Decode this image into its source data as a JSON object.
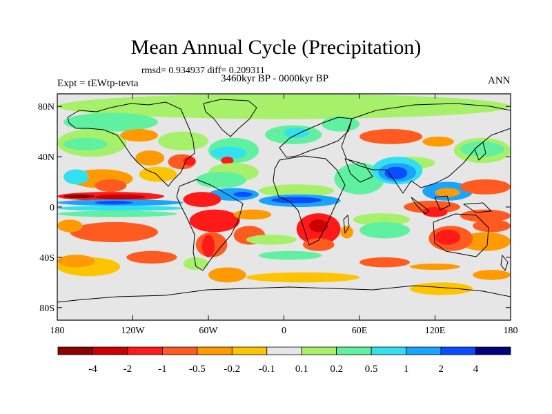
{
  "header": {
    "title": "Mean Annual Cycle (Precipitation)",
    "stats": "rmsd= 0.934937 diff= 0.209311",
    "subtitle": "3460kyr BP - 0000kyr BP",
    "experiment": "Expt = tEWtp-tevta",
    "season": "ANN"
  },
  "axes": {
    "lat_ticks": [
      {
        "lat": 80,
        "label": "80N"
      },
      {
        "lat": 40,
        "label": "40N"
      },
      {
        "lat": 0,
        "label": "0"
      },
      {
        "lat": -40,
        "label": "40S"
      },
      {
        "lat": -80,
        "label": "80S"
      }
    ],
    "lon_ticks": [
      {
        "lon": -180,
        "label": "180"
      },
      {
        "lon": -120,
        "label": "120W"
      },
      {
        "lon": -60,
        "label": "60W"
      },
      {
        "lon": 0,
        "label": "0"
      },
      {
        "lon": 60,
        "label": "60E"
      },
      {
        "lon": 120,
        "label": "120E"
      },
      {
        "lon": 180,
        "label": "180"
      }
    ]
  },
  "colorbar": {
    "colors": [
      "#8b0000",
      "#cc0000",
      "#ff1a1a",
      "#ff5a1f",
      "#ff9a00",
      "#ffc400",
      "#e6e6e6",
      "#a6f06a",
      "#5ff0a0",
      "#33e0f0",
      "#19a5ff",
      "#0a4cff",
      "#00007a"
    ],
    "labels": [
      "-4",
      "-2",
      "-1",
      "-0.5",
      "-0.2",
      "-0.1",
      "0.1",
      "0.2",
      "0.5",
      "1",
      "2",
      "4"
    ]
  },
  "field": {
    "background": "#e6e6e6",
    "zones": [
      {
        "color": "#a6f06a",
        "lat": [
          70,
          90
        ],
        "lon": [
          -180,
          180
        ]
      },
      {
        "color": "#5ff0a0",
        "lat": [
          60,
          75
        ],
        "lon": [
          -175,
          -100
        ]
      },
      {
        "color": "#a6f06a",
        "lat": [
          40,
          62
        ],
        "lon": [
          -180,
          -125
        ]
      },
      {
        "color": "#5ff0a0",
        "lat": [
          45,
          55
        ],
        "lon": [
          -175,
          -140
        ]
      },
      {
        "color": "#ff9a00",
        "lat": [
          52,
          62
        ],
        "lon": [
          -130,
          -100
        ]
      },
      {
        "color": "#a6f06a",
        "lat": [
          45,
          60
        ],
        "lon": [
          -100,
          -60
        ]
      },
      {
        "color": "#ff9a00",
        "lat": [
          33,
          45
        ],
        "lon": [
          -118,
          -95
        ]
      },
      {
        "color": "#ff5a1f",
        "lat": [
          30,
          42
        ],
        "lon": [
          -92,
          -70
        ]
      },
      {
        "color": "#ff1a1a",
        "lat": [
          33,
          40
        ],
        "lon": [
          -80,
          -70
        ]
      },
      {
        "color": "#5ff0a0",
        "lat": [
          35,
          55
        ],
        "lon": [
          -60,
          -20
        ]
      },
      {
        "color": "#33e0f0",
        "lat": [
          38,
          48
        ],
        "lon": [
          -58,
          -30
        ]
      },
      {
        "color": "#ff1a1a",
        "lat": [
          34,
          40
        ],
        "lon": [
          -50,
          -40
        ]
      },
      {
        "color": "#ff9a00",
        "lat": [
          15,
          30
        ],
        "lon": [
          -170,
          -120
        ]
      },
      {
        "color": "#ff5a1f",
        "lat": [
          12,
          22
        ],
        "lon": [
          -150,
          -125
        ]
      },
      {
        "color": "#ffc400",
        "lat": [
          20,
          32
        ],
        "lon": [
          -115,
          -85
        ]
      },
      {
        "color": "#5ff0a0",
        "lat": [
          50,
          65
        ],
        "lon": [
          -15,
          30
        ]
      },
      {
        "color": "#33e0f0",
        "lat": [
          55,
          63
        ],
        "lon": [
          0,
          20
        ]
      },
      {
        "color": "#5ff0a0",
        "lat": [
          60,
          72
        ],
        "lon": [
          30,
          60
        ]
      },
      {
        "color": "#ff5a1f",
        "lat": [
          50,
          62
        ],
        "lon": [
          60,
          110
        ]
      },
      {
        "color": "#ff9a00",
        "lat": [
          48,
          56
        ],
        "lon": [
          110,
          135
        ]
      },
      {
        "color": "#a6f06a",
        "lat": [
          35,
          55
        ],
        "lon": [
          135,
          180
        ]
      },
      {
        "color": "#5ff0a0",
        "lat": [
          40,
          52
        ],
        "lon": [
          140,
          175
        ]
      },
      {
        "color": "#33e0f0",
        "lat": [
          18,
          30
        ],
        "lon": [
          -175,
          -155
        ]
      },
      {
        "color": "#a6f06a",
        "lat": [
          20,
          35
        ],
        "lon": [
          -60,
          -20
        ]
      },
      {
        "color": "#5ff0a0",
        "lat": [
          15,
          28
        ],
        "lon": [
          -70,
          -30
        ]
      },
      {
        "color": "#a6f06a",
        "lat": [
          8,
          18
        ],
        "lon": [
          -20,
          40
        ]
      },
      {
        "color": "#5ff0a0",
        "lat": [
          10,
          35
        ],
        "lon": [
          40,
          80
        ]
      },
      {
        "color": "#a6f06a",
        "lat": [
          30,
          40
        ],
        "lon": [
          80,
          120
        ]
      },
      {
        "color": "#33e0f0",
        "lat": [
          18,
          40
        ],
        "lon": [
          70,
          110
        ]
      },
      {
        "color": "#19a5ff",
        "lat": [
          20,
          35
        ],
        "lon": [
          75,
          105
        ]
      },
      {
        "color": "#0a4cff",
        "lat": [
          22,
          32
        ],
        "lon": [
          80,
          98
        ]
      },
      {
        "color": "#19a5ff",
        "lat": [
          5,
          20
        ],
        "lon": [
          110,
          150
        ]
      },
      {
        "color": "#ff5a1f",
        "lat": [
          10,
          22
        ],
        "lon": [
          140,
          180
        ]
      },
      {
        "color": "#ff9a00",
        "lat": [
          8,
          15
        ],
        "lon": [
          120,
          140
        ]
      },
      {
        "color": "#ff5a1f",
        "lat": [
          -5,
          5
        ],
        "lon": [
          95,
          140
        ]
      },
      {
        "color": "#ff1a1a",
        "lat": [
          -8,
          0
        ],
        "lon": [
          110,
          130
        ]
      },
      {
        "color": "#ff5a1f",
        "lat": [
          -12,
          -2
        ],
        "lon": [
          140,
          180
        ]
      },
      {
        "color": "#ff1a1a",
        "lat": [
          5,
          12
        ],
        "lon": [
          -180,
          -95
        ]
      },
      {
        "color": "#8b0000",
        "lat": [
          7,
          10
        ],
        "lon": [
          -175,
          -150
        ]
      },
      {
        "color": "#cc0000",
        "lat": [
          6,
          10
        ],
        "lon": [
          -150,
          -110
        ]
      },
      {
        "color": "#19a5ff",
        "lat": [
          1,
          6
        ],
        "lon": [
          -180,
          -80
        ]
      },
      {
        "color": "#0a4cff",
        "lat": [
          2,
          5
        ],
        "lon": [
          -150,
          -120
        ]
      },
      {
        "color": "#33e0f0",
        "lat": [
          -3,
          1
        ],
        "lon": [
          -180,
          -80
        ]
      },
      {
        "color": "#5ff0a0",
        "lat": [
          -8,
          -3
        ],
        "lon": [
          -180,
          -85
        ]
      },
      {
        "color": "#19a5ff",
        "lat": [
          5,
          15
        ],
        "lon": [
          -60,
          -20
        ]
      },
      {
        "color": "#0a4cff",
        "lat": [
          8,
          12
        ],
        "lon": [
          -40,
          -25
        ]
      },
      {
        "color": "#ff1a1a",
        "lat": [
          0,
          12
        ],
        "lon": [
          -80,
          -50
        ]
      },
      {
        "color": "#19a5ff",
        "lat": [
          0,
          10
        ],
        "lon": [
          -20,
          45
        ]
      },
      {
        "color": "#0a4cff",
        "lat": [
          3,
          8
        ],
        "lon": [
          -10,
          30
        ]
      },
      {
        "color": "#ff1a1a",
        "lat": [
          -20,
          -2
        ],
        "lon": [
          -75,
          -35
        ]
      },
      {
        "color": "#ff5a1f",
        "lat": [
          -40,
          -20
        ],
        "lon": [
          -70,
          -45
        ]
      },
      {
        "color": "#ff1a1a",
        "lat": [
          -40,
          -22
        ],
        "lon": [
          -65,
          -55
        ]
      },
      {
        "color": "#ff5a1f",
        "lat": [
          -30,
          -15
        ],
        "lon": [
          -40,
          -15
        ]
      },
      {
        "color": "#ff9a00",
        "lat": [
          -10,
          -2
        ],
        "lon": [
          -40,
          -10
        ]
      },
      {
        "color": "#ff1a1a",
        "lat": [
          -30,
          -5
        ],
        "lon": [
          10,
          45
        ]
      },
      {
        "color": "#cc0000",
        "lat": [
          -20,
          -10
        ],
        "lon": [
          20,
          35
        ]
      },
      {
        "color": "#ff5a1f",
        "lat": [
          -35,
          -25
        ],
        "lon": [
          15,
          40
        ]
      },
      {
        "color": "#ff9a00",
        "lat": [
          -25,
          -15
        ],
        "lon": [
          45,
          55
        ]
      },
      {
        "color": "#ff1a1a",
        "lat": [
          -22,
          -12
        ],
        "lon": [
          -150,
          -115
        ]
      },
      {
        "color": "#ff5a1f",
        "lat": [
          -28,
          -12
        ],
        "lon": [
          -170,
          -100
        ]
      },
      {
        "color": "#ff9a00",
        "lat": [
          -20,
          -10
        ],
        "lon": [
          -180,
          -160
        ]
      },
      {
        "color": "#a6f06a",
        "lat": [
          -15,
          -5
        ],
        "lon": [
          55,
          100
        ]
      },
      {
        "color": "#5ff0a0",
        "lat": [
          -25,
          -12
        ],
        "lon": [
          60,
          100
        ]
      },
      {
        "color": "#a6f06a",
        "lat": [
          -30,
          -22
        ],
        "lon": [
          -30,
          10
        ]
      },
      {
        "color": "#ff5a1f",
        "lat": [
          -20,
          -10
        ],
        "lon": [
          150,
          180
        ]
      },
      {
        "color": "#ff9a00",
        "lat": [
          -35,
          -20
        ],
        "lon": [
          140,
          180
        ]
      },
      {
        "color": "#ff5a1f",
        "lat": [
          -35,
          -15
        ],
        "lon": [
          115,
          150
        ]
      },
      {
        "color": "#ff1a1a",
        "lat": [
          -30,
          -18
        ],
        "lon": [
          120,
          140
        ]
      },
      {
        "color": "#ffc400",
        "lat": [
          -55,
          -40
        ],
        "lon": [
          -180,
          -130
        ]
      },
      {
        "color": "#ff9a00",
        "lat": [
          -48,
          -38
        ],
        "lon": [
          -180,
          -150
        ]
      },
      {
        "color": "#ff5a1f",
        "lat": [
          -45,
          -35
        ],
        "lon": [
          -125,
          -85
        ]
      },
      {
        "color": "#a6f06a",
        "lat": [
          -50,
          -40
        ],
        "lon": [
          -80,
          -60
        ]
      },
      {
        "color": "#5ff0a0",
        "lat": [
          -42,
          -35
        ],
        "lon": [
          -20,
          30
        ]
      },
      {
        "color": "#ff9a00",
        "lat": [
          -60,
          -48
        ],
        "lon": [
          -60,
          -30
        ]
      },
      {
        "color": "#ff5a1f",
        "lat": [
          -48,
          -40
        ],
        "lon": [
          60,
          100
        ]
      },
      {
        "color": "#ff9a00",
        "lat": [
          -50,
          -45
        ],
        "lon": [
          100,
          140
        ]
      },
      {
        "color": "#ffc400",
        "lat": [
          -60,
          -52
        ],
        "lon": [
          -30,
          60
        ]
      },
      {
        "color": "#ff9a00",
        "lat": [
          -58,
          -50
        ],
        "lon": [
          150,
          180
        ]
      },
      {
        "color": "#ffc400",
        "lat": [
          -70,
          -60
        ],
        "lon": [
          100,
          150
        ]
      }
    ]
  }
}
